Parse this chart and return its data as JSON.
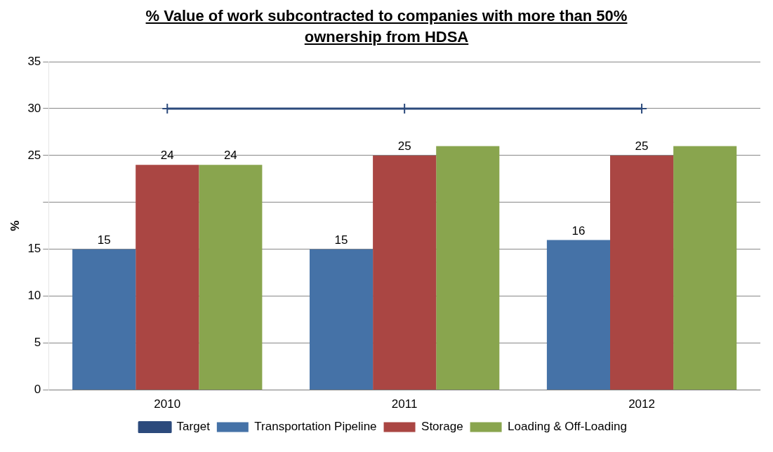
{
  "chart_data": {
    "type": "bar",
    "title": "% Value of work subcontracted to companies with more than 50% ownership from HDSA",
    "ylabel": "%",
    "categories": [
      "2010",
      "2011",
      "2012"
    ],
    "series": [
      {
        "name": "Transportation Pipeline",
        "color": "#4572a7",
        "values": [
          15,
          15,
          16
        ],
        "value_labels": [
          "15",
          "15",
          "16"
        ]
      },
      {
        "name": "Storage",
        "color": "#aa4643",
        "values": [
          24,
          25,
          25
        ],
        "value_labels": [
          "24",
          "25",
          "25"
        ]
      },
      {
        "name": "Loading & Off-Loading",
        "color": "#89a54e",
        "values": [
          24,
          26,
          26
        ],
        "value_labels": [
          "24",
          null,
          null
        ]
      },
      {
        "name": "Target",
        "type": "line",
        "color": "#2c4a7c",
        "values": [
          30,
          30,
          30
        ],
        "marker": "cross"
      }
    ],
    "ylim": [
      0,
      35
    ],
    "yticks": [
      0,
      5,
      10,
      15,
      {
        "value": 20,
        "label": null
      },
      25,
      30,
      35
    ],
    "grid": "y",
    "legend": "bottom"
  }
}
